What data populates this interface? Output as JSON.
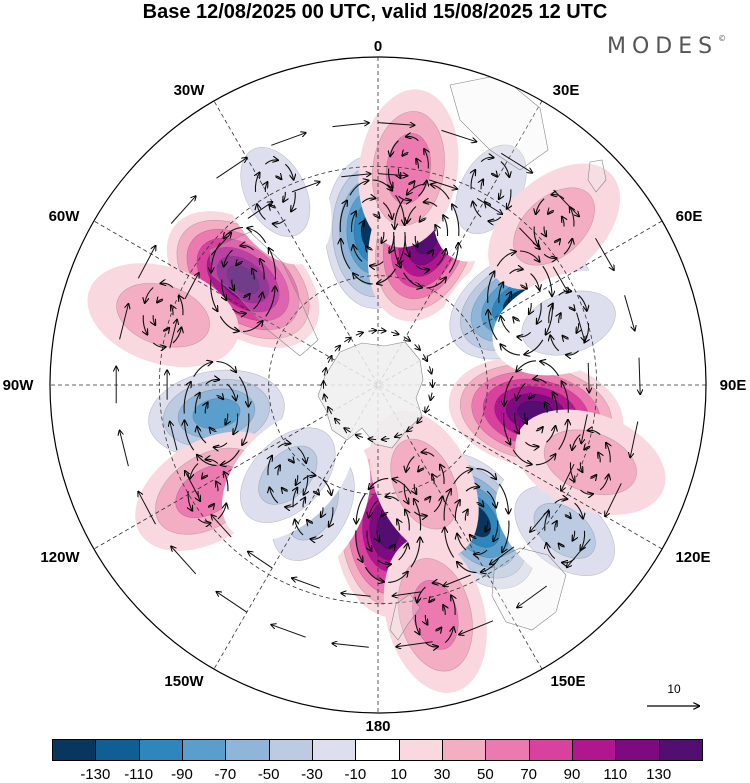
{
  "title": "Base 12/08/2025 00 UTC, valid 15/08/2025 12 UTC",
  "brand": "MODES",
  "brand_mark": "©",
  "longitude_labels": {
    "lon0": "0",
    "lon30e": "30E",
    "lon60e": "60E",
    "lon90e": "90E",
    "lon120e": "120E",
    "lon150e": "150E",
    "lon180": "180",
    "lon150w": "150W",
    "lon120w": "120W",
    "lon90w": "90W",
    "lon60w": "60W",
    "lon30w": "30W"
  },
  "vector_reference": {
    "value": "10"
  },
  "colorbar": {
    "colors": [
      "#08365e",
      "#0f5f94",
      "#2f86bd",
      "#5a9fcb",
      "#8fb6d8",
      "#bccbe2",
      "#dedfee",
      "#ffffff",
      "#f9d8df",
      "#f4aec3",
      "#ec7ab0",
      "#d9419e",
      "#b0168f",
      "#7d0a81",
      "#520f71"
    ],
    "tick_labels": [
      "-130",
      "-110",
      "-90",
      "-70",
      "-50",
      "-30",
      "-10",
      "10",
      "30",
      "50",
      "70",
      "90",
      "110",
      "130"
    ]
  },
  "anomalies": [
    {
      "id": "a1",
      "lon": -2,
      "lat": -48,
      "value": -130
    },
    {
      "id": "a2",
      "lon": 18,
      "lat": -47,
      "value": 130
    },
    {
      "id": "a3",
      "lon": 60,
      "lat": -45,
      "value": -130
    },
    {
      "id": "a4",
      "lon": 100,
      "lat": -46,
      "value": 130
    },
    {
      "id": "a5",
      "lon": 144,
      "lat": -44,
      "value": -130
    },
    {
      "id": "a6",
      "lon": 176,
      "lat": -50,
      "value": 120
    },
    {
      "id": "a7",
      "lon": -52,
      "lat": -43,
      "value": 120
    },
    {
      "id": "a8",
      "lon": -100,
      "lat": -45,
      "value": -85
    },
    {
      "id": "a9",
      "lon": -122,
      "lat": -35,
      "value": 50
    },
    {
      "id": "a10",
      "lon": -152,
      "lat": -52,
      "value": -45
    },
    {
      "id": "a11",
      "lon": 166,
      "lat": -25,
      "value": 45
    },
    {
      "id": "a12",
      "lon": 30,
      "lat": -28,
      "value": -35
    },
    {
      "id": "a13",
      "lon": 8,
      "lat": -30,
      "value": 45
    },
    {
      "id": "a14",
      "lon": 48,
      "lat": -25,
      "value": 25
    },
    {
      "id": "a15",
      "lon": 72,
      "lat": -35,
      "value": -35
    },
    {
      "id": "a16",
      "lon": -72,
      "lat": -28,
      "value": 30
    },
    {
      "id": "a17",
      "lon": -28,
      "lat": -30,
      "value": -30
    },
    {
      "id": "a18",
      "lon": 128,
      "lat": -25,
      "value": -40
    },
    {
      "id": "a19",
      "lon": 110,
      "lat": -28,
      "value": 30
    },
    {
      "id": "a20",
      "lon": -135,
      "lat": -55,
      "value": -40
    },
    {
      "id": "a21",
      "lon": 155,
      "lat": -60,
      "value": 25
    }
  ]
}
